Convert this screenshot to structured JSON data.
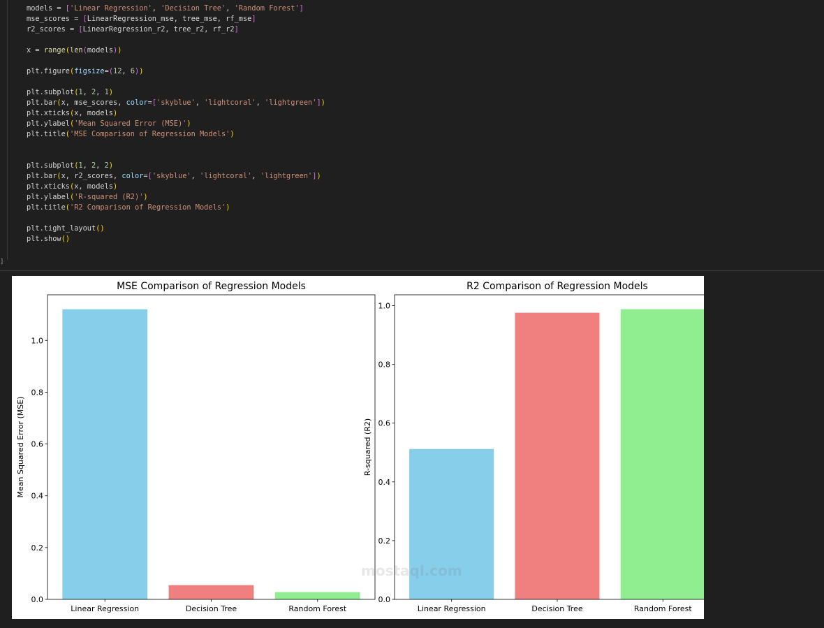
{
  "code": {
    "lines": [
      [
        {
          "t": "models = ",
          "c": ""
        },
        {
          "t": "[",
          "c": "brk"
        },
        {
          "t": "'Linear Regression'",
          "c": "str"
        },
        {
          "t": ", ",
          "c": ""
        },
        {
          "t": "'Decision Tree'",
          "c": "str"
        },
        {
          "t": ", ",
          "c": ""
        },
        {
          "t": "'Random Forest'",
          "c": "str"
        },
        {
          "t": "]",
          "c": "brk"
        }
      ],
      [
        {
          "t": "mse_scores = ",
          "c": ""
        },
        {
          "t": "[",
          "c": "brk"
        },
        {
          "t": "LinearRegression_mse, tree_mse, rf_mse",
          "c": ""
        },
        {
          "t": "]",
          "c": "brk"
        }
      ],
      [
        {
          "t": "r2_scores = ",
          "c": ""
        },
        {
          "t": "[",
          "c": "brk"
        },
        {
          "t": "LinearRegression_r2, tree_r2, rf_r2",
          "c": ""
        },
        {
          "t": "]",
          "c": "brk"
        }
      ],
      [],
      [
        {
          "t": "x = ",
          "c": ""
        },
        {
          "t": "range",
          "c": "fn"
        },
        {
          "t": "(",
          "c": "par"
        },
        {
          "t": "len",
          "c": "fn"
        },
        {
          "t": "(",
          "c": "brk"
        },
        {
          "t": "models",
          "c": ""
        },
        {
          "t": ")",
          "c": "brk"
        },
        {
          "t": ")",
          "c": "par"
        }
      ],
      [],
      [
        {
          "t": "plt.figure",
          "c": ""
        },
        {
          "t": "(",
          "c": "par"
        },
        {
          "t": "figsize",
          "c": "kw"
        },
        {
          "t": "=",
          "c": ""
        },
        {
          "t": "(",
          "c": "brk"
        },
        {
          "t": "12",
          "c": "num"
        },
        {
          "t": ", ",
          "c": ""
        },
        {
          "t": "6",
          "c": "num"
        },
        {
          "t": ")",
          "c": "brk"
        },
        {
          "t": ")",
          "c": "par"
        }
      ],
      [],
      [
        {
          "t": "plt.subplot",
          "c": ""
        },
        {
          "t": "(",
          "c": "par"
        },
        {
          "t": "1",
          "c": "num"
        },
        {
          "t": ", ",
          "c": ""
        },
        {
          "t": "2",
          "c": "num"
        },
        {
          "t": ", ",
          "c": ""
        },
        {
          "t": "1",
          "c": "num"
        },
        {
          "t": ")",
          "c": "par"
        }
      ],
      [
        {
          "t": "plt.bar",
          "c": ""
        },
        {
          "t": "(",
          "c": "par"
        },
        {
          "t": "x, mse_scores, ",
          "c": ""
        },
        {
          "t": "color",
          "c": "kw"
        },
        {
          "t": "=",
          "c": ""
        },
        {
          "t": "[",
          "c": "brk"
        },
        {
          "t": "'skyblue'",
          "c": "str"
        },
        {
          "t": ", ",
          "c": ""
        },
        {
          "t": "'lightcoral'",
          "c": "str"
        },
        {
          "t": ", ",
          "c": ""
        },
        {
          "t": "'lightgreen'",
          "c": "str"
        },
        {
          "t": "]",
          "c": "brk"
        },
        {
          "t": ")",
          "c": "par"
        }
      ],
      [
        {
          "t": "plt.xticks",
          "c": ""
        },
        {
          "t": "(",
          "c": "par"
        },
        {
          "t": "x, models",
          "c": ""
        },
        {
          "t": ")",
          "c": "par"
        }
      ],
      [
        {
          "t": "plt.ylabel",
          "c": ""
        },
        {
          "t": "(",
          "c": "par"
        },
        {
          "t": "'Mean Squared Error (MSE)'",
          "c": "str"
        },
        {
          "t": ")",
          "c": "par"
        }
      ],
      [
        {
          "t": "plt.title",
          "c": ""
        },
        {
          "t": "(",
          "c": "par"
        },
        {
          "t": "'MSE Comparison of Regression Models'",
          "c": "str"
        },
        {
          "t": ")",
          "c": "par"
        }
      ],
      [],
      [],
      [
        {
          "t": "plt.subplot",
          "c": ""
        },
        {
          "t": "(",
          "c": "par"
        },
        {
          "t": "1",
          "c": "num"
        },
        {
          "t": ", ",
          "c": ""
        },
        {
          "t": "2",
          "c": "num"
        },
        {
          "t": ", ",
          "c": ""
        },
        {
          "t": "2",
          "c": "num"
        },
        {
          "t": ")",
          "c": "par"
        }
      ],
      [
        {
          "t": "plt.bar",
          "c": ""
        },
        {
          "t": "(",
          "c": "par"
        },
        {
          "t": "x, r2_scores, ",
          "c": ""
        },
        {
          "t": "color",
          "c": "kw"
        },
        {
          "t": "=",
          "c": ""
        },
        {
          "t": "[",
          "c": "brk"
        },
        {
          "t": "'skyblue'",
          "c": "str"
        },
        {
          "t": ", ",
          "c": ""
        },
        {
          "t": "'lightcoral'",
          "c": "str"
        },
        {
          "t": ", ",
          "c": ""
        },
        {
          "t": "'lightgreen'",
          "c": "str"
        },
        {
          "t": "]",
          "c": "brk"
        },
        {
          "t": ")",
          "c": "par"
        }
      ],
      [
        {
          "t": "plt.xticks",
          "c": ""
        },
        {
          "t": "(",
          "c": "par"
        },
        {
          "t": "x, models",
          "c": ""
        },
        {
          "t": ")",
          "c": "par"
        }
      ],
      [
        {
          "t": "plt.ylabel",
          "c": ""
        },
        {
          "t": "(",
          "c": "par"
        },
        {
          "t": "'R-squared (R2)'",
          "c": "str"
        },
        {
          "t": ")",
          "c": "par"
        }
      ],
      [
        {
          "t": "plt.title",
          "c": ""
        },
        {
          "t": "(",
          "c": "par"
        },
        {
          "t": "'R2 Comparison of Regression Models'",
          "c": "str"
        },
        {
          "t": ")",
          "c": "par"
        }
      ],
      [],
      [
        {
          "t": "plt.tight_layout",
          "c": ""
        },
        {
          "t": "(",
          "c": "par"
        },
        {
          "t": ")",
          "c": "par"
        }
      ],
      [
        {
          "t": "plt.show",
          "c": ""
        },
        {
          "t": "(",
          "c": "par"
        },
        {
          "t": ")",
          "c": "par"
        }
      ]
    ],
    "exec_marker": "]"
  },
  "colors": {
    "skyblue": "#87ceeb",
    "lightcoral": "#f08080",
    "lightgreen": "#90ee90"
  },
  "watermark": "mostaql.com",
  "chart_data": [
    {
      "type": "bar",
      "title": "MSE Comparison of Regression Models",
      "xlabel": "",
      "ylabel": "Mean Squared Error (MSE)",
      "categories": [
        "Linear Regression",
        "Decision Tree",
        "Random Forest"
      ],
      "values": [
        1.12,
        0.055,
        0.028
      ],
      "colors": [
        "#87ceeb",
        "#f08080",
        "#90ee90"
      ],
      "ylim": [
        0,
        1.176
      ],
      "yticks": [
        0.0,
        0.2,
        0.4,
        0.6,
        0.8,
        1.0
      ],
      "ytick_labels": [
        "0.0",
        "0.2",
        "0.4",
        "0.6",
        "0.8",
        "1.0"
      ]
    },
    {
      "type": "bar",
      "title": "R2 Comparison of Regression Models",
      "xlabel": "",
      "ylabel": "R-squared (R2)",
      "categories": [
        "Linear Regression",
        "Decision Tree",
        "Random Forest"
      ],
      "values": [
        0.512,
        0.976,
        0.988
      ],
      "colors": [
        "#87ceeb",
        "#f08080",
        "#90ee90"
      ],
      "ylim": [
        0,
        1.037
      ],
      "yticks": [
        0.0,
        0.2,
        0.4,
        0.6,
        0.8,
        1.0
      ],
      "ytick_labels": [
        "0.0",
        "0.2",
        "0.4",
        "0.6",
        "0.8",
        "1.0"
      ]
    }
  ]
}
